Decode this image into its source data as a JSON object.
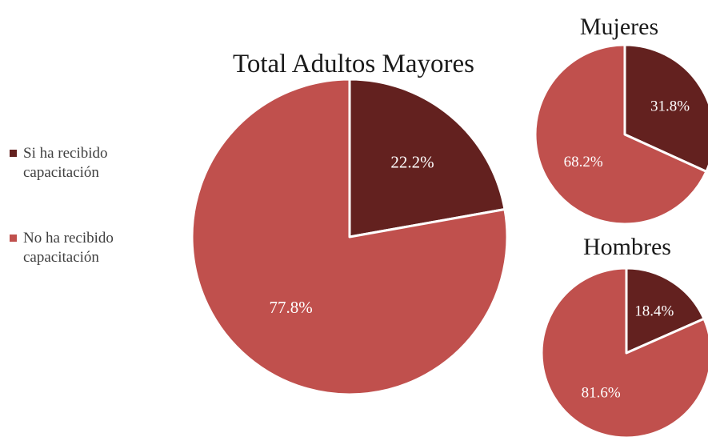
{
  "colors": {
    "si": "#63211f",
    "no": "#c0504d"
  },
  "legend": [
    {
      "label_lines": [
        "Si ha recibido",
        "capacitación"
      ],
      "color": "#63211f"
    },
    {
      "label_lines": [
        "No ha recibido",
        "capacitación"
      ],
      "color": "#c0504d"
    }
  ],
  "chart_data": [
    {
      "type": "pie",
      "title": "Total Adultos Mayores",
      "categories": [
        "Si ha recibido capacitación",
        "No ha recibido capacitación"
      ],
      "values": [
        22.2,
        77.8
      ],
      "labels": [
        "22.2%",
        "77.8%"
      ]
    },
    {
      "type": "pie",
      "title": "Mujeres",
      "categories": [
        "Si ha recibido capacitación",
        "No ha recibido capacitación"
      ],
      "values": [
        31.8,
        68.2
      ],
      "labels": [
        "31.8%",
        "68.2%"
      ]
    },
    {
      "type": "pie",
      "title": "Hombres",
      "categories": [
        "Si ha recibido capacitación",
        "No ha recibido capacitación"
      ],
      "values": [
        18.4,
        81.6
      ],
      "labels": [
        "18.4%",
        "81.6%"
      ]
    }
  ]
}
